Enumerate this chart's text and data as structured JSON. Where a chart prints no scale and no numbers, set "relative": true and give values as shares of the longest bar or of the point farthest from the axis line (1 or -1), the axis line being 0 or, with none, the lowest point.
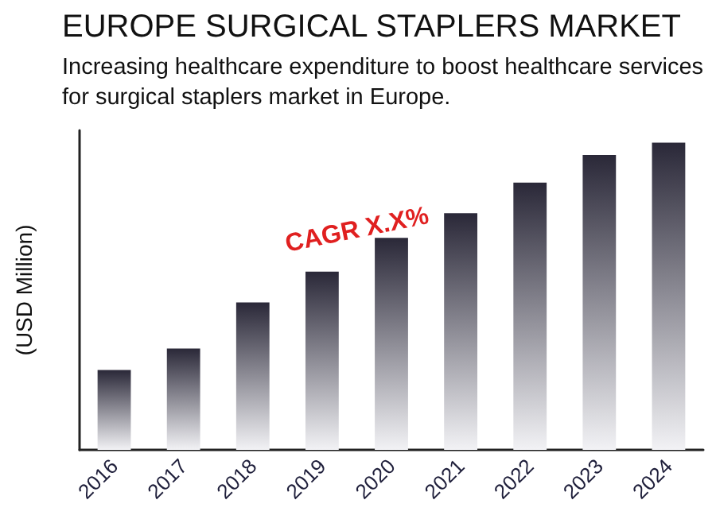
{
  "chart_data": {
    "type": "bar",
    "title": "EUROPE SURGICAL STAPLERS MARKET",
    "subtitle": "Increasing healthcare expenditure to boost healthcare services for surgical staplers market in Europe.",
    "ylabel": "(USD Million)",
    "categories": [
      "2016",
      "2017",
      "2018",
      "2019",
      "2020",
      "2021",
      "2022",
      "2023",
      "2024"
    ],
    "values": [
      0.26,
      0.33,
      0.48,
      0.58,
      0.69,
      0.77,
      0.87,
      0.96,
      1
    ],
    "color": "#2a2838",
    "relative": true,
    "annotations": [
      "CAGR X.X%"
    ],
    "grid": false
  }
}
